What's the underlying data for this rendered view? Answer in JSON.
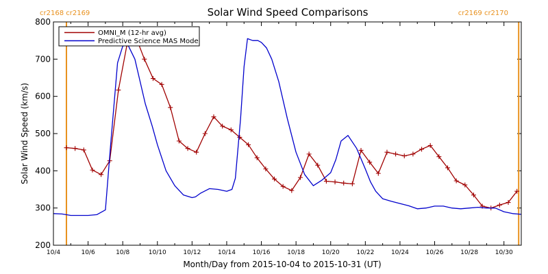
{
  "chart_data": {
    "type": "line",
    "title": "Solar Wind Speed Comparisons",
    "xlabel": "Month/Day from 2015-10-04 to 2015-10-31 (UT)",
    "ylabel": "Solar Wind Speed (km/s)",
    "xlim": [
      0,
      27
    ],
    "ylim": [
      200,
      800
    ],
    "y_ticks": [
      200,
      300,
      400,
      500,
      600,
      700,
      800
    ],
    "x_ticks": [
      {
        "day": 0,
        "label": "10/4"
      },
      {
        "day": 2,
        "label": "10/6"
      },
      {
        "day": 4,
        "label": "10/8"
      },
      {
        "day": 6,
        "label": "10/10"
      },
      {
        "day": 8,
        "label": "10/12"
      },
      {
        "day": 10,
        "label": "10/14"
      },
      {
        "day": 12,
        "label": "10/16"
      },
      {
        "day": 14,
        "label": "10/18"
      },
      {
        "day": 16,
        "label": "10/20"
      },
      {
        "day": 18,
        "label": "10/22"
      },
      {
        "day": 20,
        "label": "10/24"
      },
      {
        "day": 22,
        "label": "10/26"
      },
      {
        "day": 24,
        "label": "10/28"
      },
      {
        "day": 26,
        "label": "10/30"
      }
    ],
    "carrington_labels": {
      "left": "cr2168 cr2169",
      "right": "cr2169 cr2170"
    },
    "carrington_lines_day": [
      0.75,
      26.85
    ],
    "carrington_line_color": "#e8901c",
    "legend_position": "top-left",
    "series": [
      {
        "name": "OMNI_M (12-hr avg)",
        "color": "#a00000",
        "marker": "plus",
        "x": [
          0.75,
          1.25,
          1.75,
          2.25,
          2.75,
          3.25,
          3.75,
          4.25,
          4.75,
          5.25,
          5.75,
          6.25,
          6.75,
          7.25,
          7.75,
          8.25,
          8.75,
          9.25,
          9.75,
          10.25,
          10.75,
          11.25,
          11.75,
          12.25,
          12.75,
          13.25,
          13.75,
          14.25,
          14.75,
          15.25,
          15.75,
          16.25,
          16.75,
          17.25,
          17.75,
          18.25,
          18.75,
          19.25,
          19.75,
          20.25,
          20.75,
          21.25,
          21.75,
          22.25,
          22.75,
          23.25,
          23.75,
          24.25,
          24.75,
          25.25,
          25.75,
          26.25,
          26.75
        ],
        "y": [
          462,
          460,
          456,
          402,
          390,
          427,
          617,
          740,
          760,
          700,
          648,
          632,
          570,
          480,
          460,
          450,
          500,
          545,
          520,
          510,
          490,
          470,
          435,
          405,
          378,
          358,
          347,
          382,
          445,
          415,
          372,
          370,
          367,
          365,
          455,
          423,
          393,
          450,
          445,
          440,
          445,
          458,
          468,
          438,
          408,
          373,
          362,
          335,
          305,
          300,
          308,
          315,
          345
        ]
      },
      {
        "name": "Predictive Science MAS Model",
        "color": "#0000cc",
        "marker": "none",
        "x": [
          0.0,
          0.5,
          1.0,
          1.5,
          2.0,
          2.5,
          3.0,
          3.3,
          3.7,
          4.0,
          4.3,
          4.7,
          5.0,
          5.3,
          5.7,
          6.0,
          6.5,
          7.0,
          7.5,
          8.0,
          8.2,
          8.5,
          9.0,
          9.5,
          10.0,
          10.3,
          10.5,
          10.8,
          11.0,
          11.2,
          11.5,
          11.8,
          12.0,
          12.3,
          12.6,
          13.0,
          13.5,
          14.0,
          14.5,
          15.0,
          15.5,
          16.0,
          16.3,
          16.6,
          17.0,
          17.5,
          18.0,
          18.3,
          18.6,
          19.0,
          19.5,
          20.0,
          20.5,
          21.0,
          21.5,
          22.0,
          22.5,
          23.0,
          23.5,
          24.0,
          24.5,
          25.0,
          25.5,
          26.0,
          26.5,
          27.0
        ],
        "y": [
          285,
          284,
          280,
          280,
          280,
          282,
          295,
          470,
          690,
          735,
          738,
          700,
          640,
          580,
          520,
          470,
          400,
          360,
          335,
          328,
          330,
          340,
          352,
          350,
          345,
          350,
          380,
          540,
          680,
          755,
          750,
          750,
          745,
          730,
          700,
          640,
          540,
          450,
          390,
          360,
          375,
          395,
          430,
          480,
          495,
          460,
          405,
          370,
          345,
          325,
          318,
          312,
          306,
          298,
          300,
          305,
          305,
          300,
          298,
          300,
          302,
          300,
          300,
          290,
          285,
          283
        ]
      }
    ]
  }
}
